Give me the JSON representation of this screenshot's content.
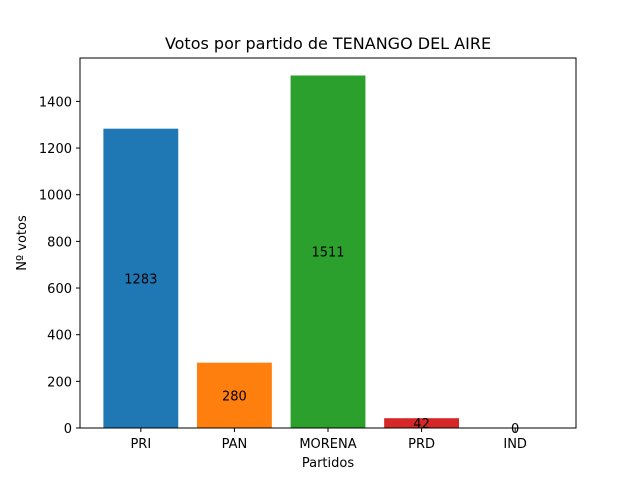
{
  "chart_data": {
    "type": "bar",
    "title": "Votos por partido de TENANGO DEL AIRE",
    "xlabel": "Partidos",
    "ylabel": "Nº votos",
    "categories": [
      "PRI",
      "PAN",
      "MORENA",
      "PRD",
      "IND"
    ],
    "values": [
      1283,
      280,
      1511,
      42,
      0
    ],
    "value_labels": [
      "1283",
      "280",
      "1511",
      "42",
      "0"
    ],
    "colors": [
      "#1f77b4",
      "#ff7f0e",
      "#2ca02c",
      "#d62728",
      "#9467bd"
    ],
    "ylim": [
      0,
      1586
    ],
    "yticks": [
      0,
      200,
      400,
      600,
      800,
      1000,
      1200,
      1400
    ],
    "ytick_labels": [
      "0",
      "200",
      "400",
      "600",
      "800",
      "1000",
      "1200",
      "1400"
    ],
    "grid": false,
    "legend": "none"
  }
}
